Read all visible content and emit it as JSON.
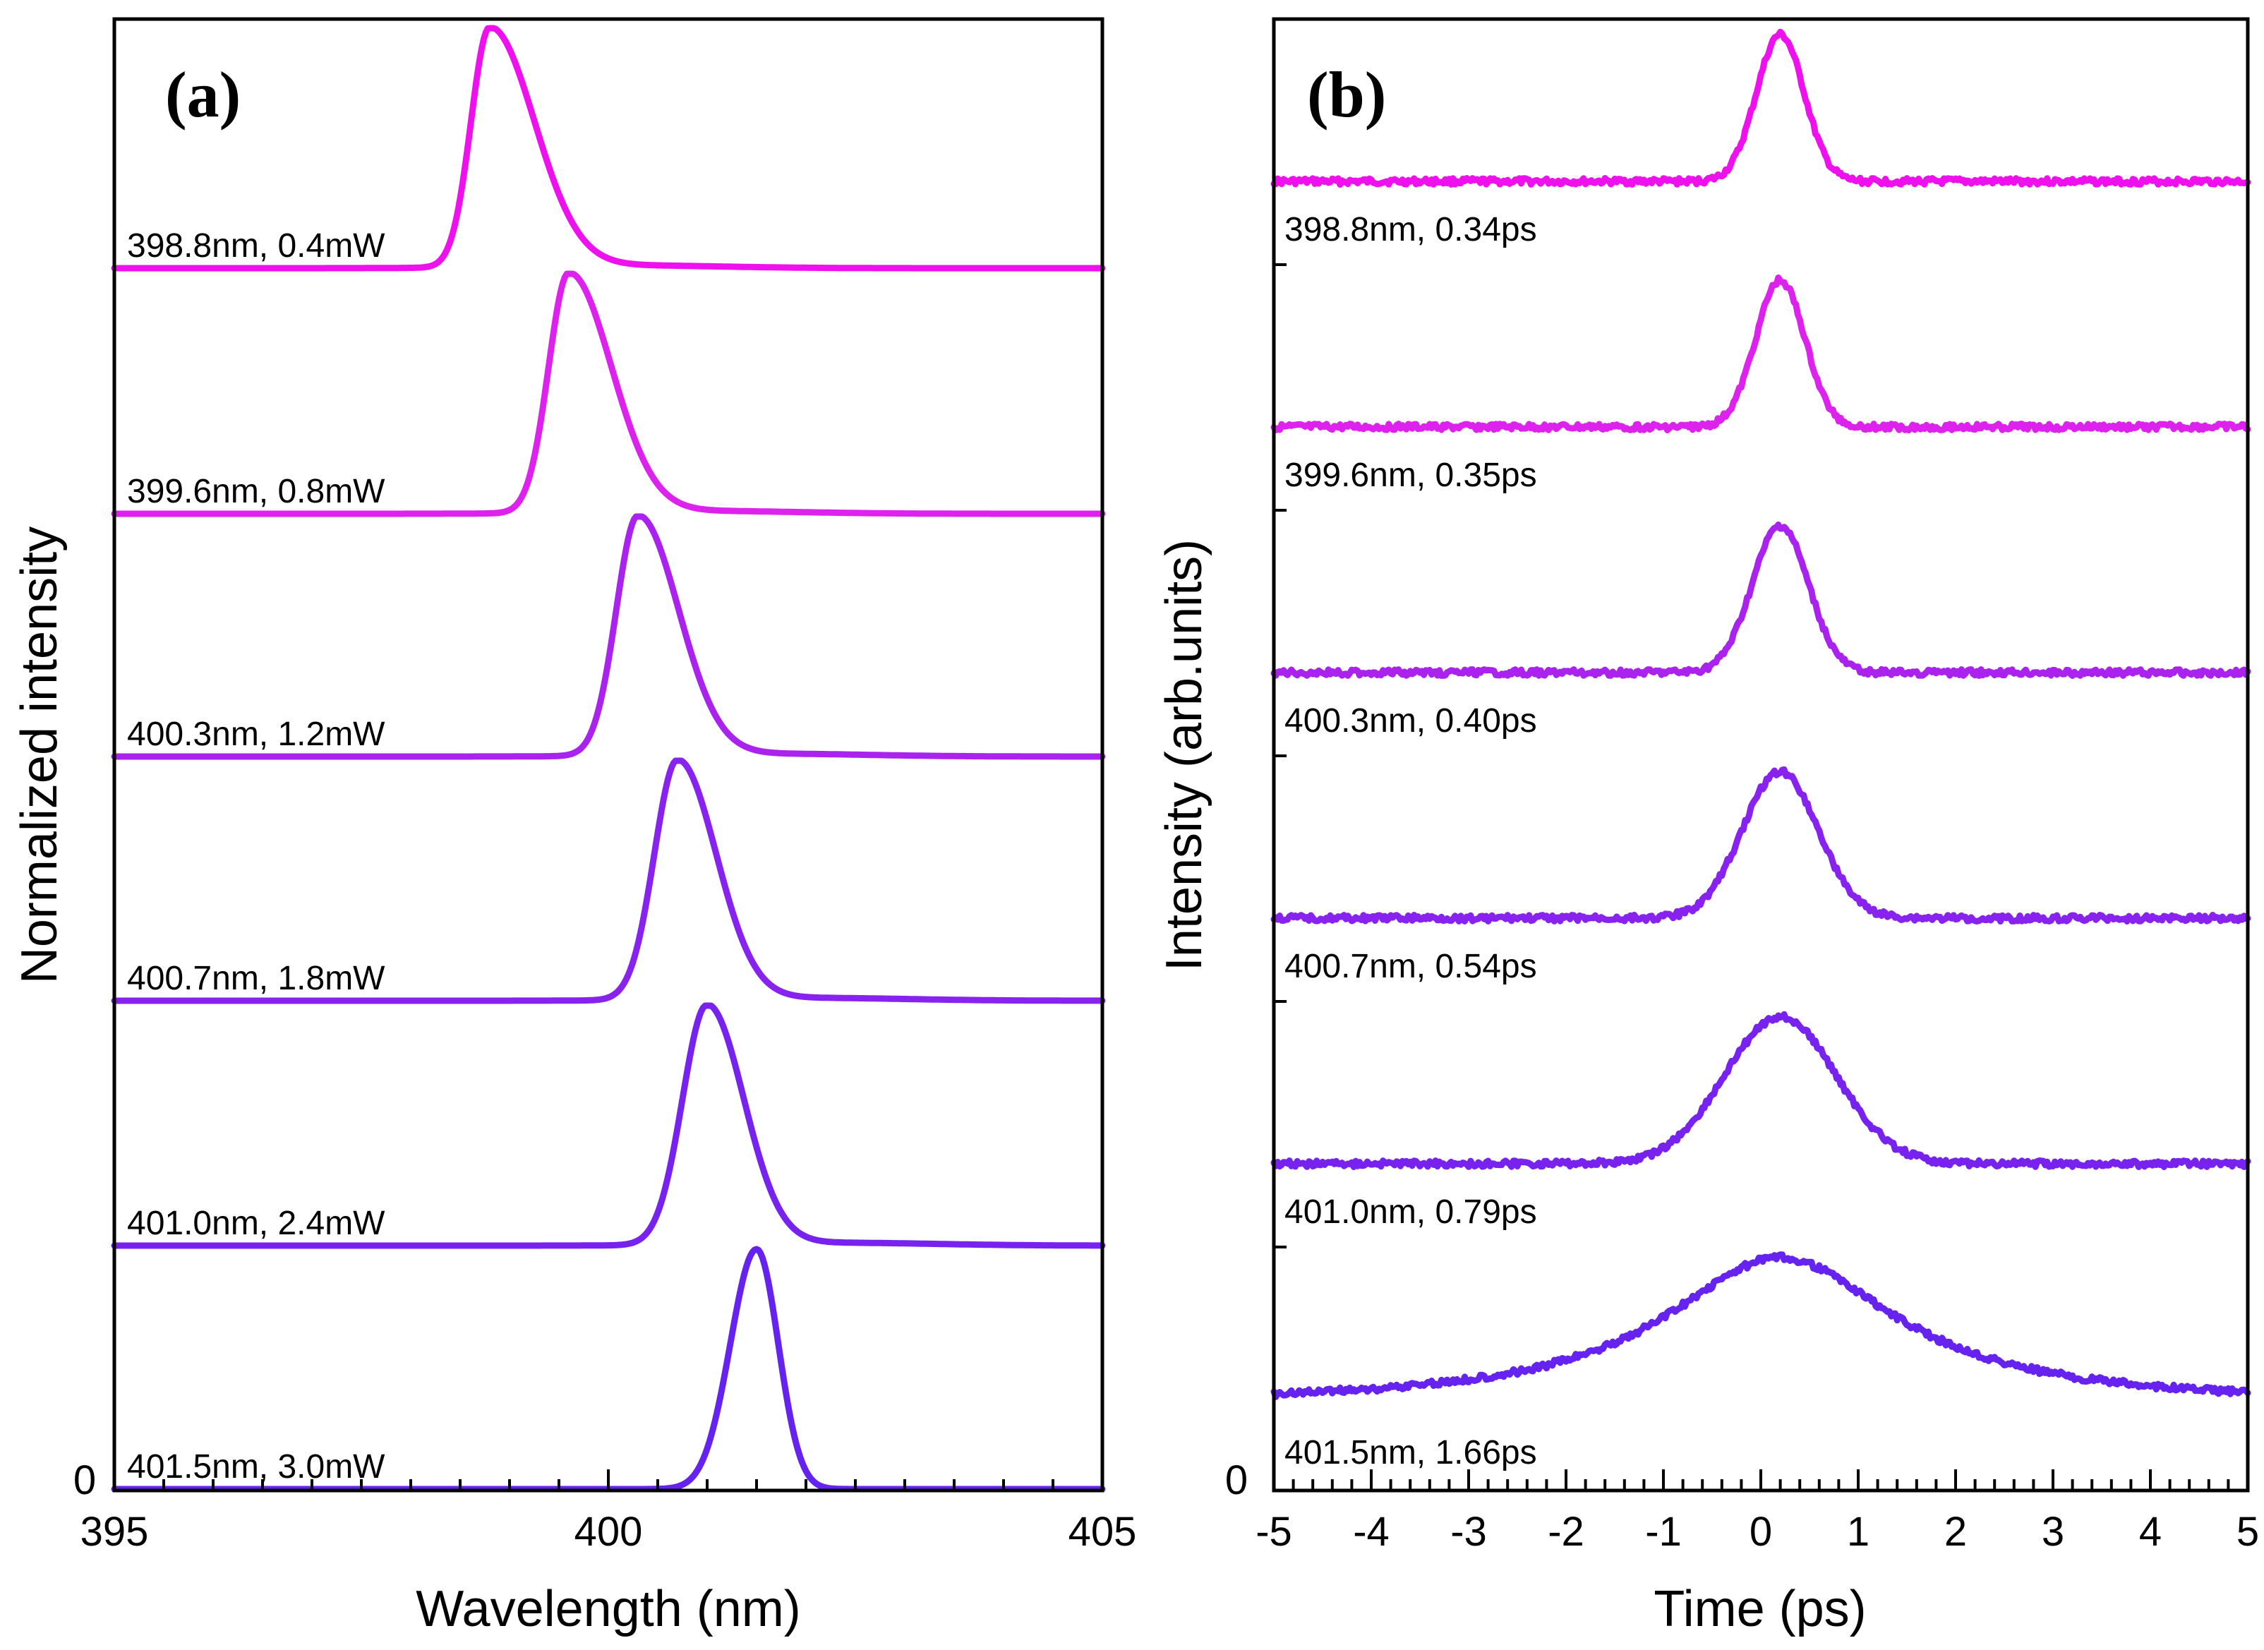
{
  "colors": [
    "#ee11ee",
    "#dd22ee",
    "#aa22ee",
    "#8822ee",
    "#7722ee",
    "#6622ee"
  ],
  "chart_data": [
    {
      "type": "line",
      "panel_label": "(a)",
      "xlabel": "Wavelength (nm)",
      "ylabel": "Normalized intensity",
      "xlim": [
        395,
        405
      ],
      "x_major_ticks": [
        395,
        400,
        405
      ],
      "x_tick_labels": [
        "395",
        "400",
        "405"
      ],
      "y_zero_label": "0",
      "grid": false,
      "series": [
        {
          "name": "398.8nm, 0.4mW",
          "peak": 398.8
        },
        {
          "name": "399.6nm, 0.8mW",
          "peak": 399.6
        },
        {
          "name": "400.3nm, 1.2mW",
          "peak": 400.3
        },
        {
          "name": "400.7nm, 1.8mW",
          "peak": 400.7
        },
        {
          "name": "401.0nm, 2.4mW",
          "peak": 401.0
        },
        {
          "name": "401.5nm, 3.0mW",
          "peak": 401.5
        }
      ]
    },
    {
      "type": "line",
      "panel_label": "(b)",
      "xlabel": "Time (ps)",
      "ylabel": "Intensity (arb.units)",
      "xlim": [
        -5,
        5
      ],
      "x_major_ticks": [
        -5,
        -4,
        -3,
        -2,
        -1,
        0,
        1,
        2,
        3,
        4,
        5
      ],
      "x_tick_labels": [
        "-5",
        "-4",
        "-3",
        "-2",
        "-1",
        "0",
        "1",
        "2",
        "3",
        "4",
        "5"
      ],
      "y_zero_label": "0",
      "grid": false,
      "series": [
        {
          "name": "398.8nm, 0.34ps",
          "center": 0.2,
          "width_ps": 0.34
        },
        {
          "name": "399.6nm, 0.35ps",
          "center": 0.2,
          "width_ps": 0.35
        },
        {
          "name": "400.3nm, 0.40ps",
          "center": 0.2,
          "width_ps": 0.4
        },
        {
          "name": "400.7nm, 0.54ps",
          "center": 0.2,
          "width_ps": 0.54
        },
        {
          "name": "401.0nm, 0.79ps",
          "center": 0.2,
          "width_ps": 0.79
        },
        {
          "name": "401.5nm, 1.66ps",
          "center": 0.2,
          "width_ps": 1.66
        }
      ]
    }
  ]
}
